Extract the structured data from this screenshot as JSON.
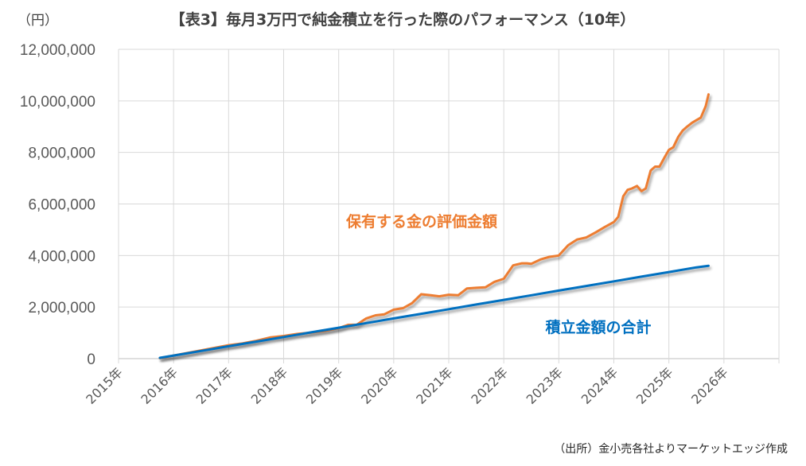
{
  "chart_data": {
    "type": "line",
    "title": "【表3】毎月3万円で純金積立を行った際のパフォーマンス（10年）",
    "ylabel": "（円）",
    "source": "（出所）金小売各社よりマーケットエッジ作成",
    "ylim": [
      0,
      12000000
    ],
    "yticks": [
      0,
      2000000,
      4000000,
      6000000,
      8000000,
      10000000,
      12000000
    ],
    "ytick_labels": [
      "0",
      "2,000,000",
      "4,000,000",
      "6,000,000",
      "8,000,000",
      "10,000,000",
      "12,000,000"
    ],
    "xlim": [
      2015,
      2027
    ],
    "xticks": [
      2015,
      2016,
      2017,
      2018,
      2019,
      2020,
      2021,
      2022,
      2023,
      2024,
      2025,
      2026,
      2027
    ],
    "xtick_labels": [
      "2015年",
      "2016年",
      "2017年",
      "2018年",
      "2019年",
      "2020年",
      "2021年",
      "2022年",
      "2023年",
      "2024年",
      "2025年",
      "2026年",
      ""
    ],
    "grid": true,
    "series": [
      {
        "name": "保有する金の評価金額",
        "color": "#ED7D31",
        "x": [
          2015.75,
          2016.0,
          2016.25,
          2016.5,
          2016.75,
          2017.0,
          2017.25,
          2017.5,
          2017.75,
          2018.0,
          2018.25,
          2018.5,
          2018.75,
          2019.0,
          2019.17,
          2019.33,
          2019.5,
          2019.67,
          2019.83,
          2020.0,
          2020.17,
          2020.33,
          2020.5,
          2020.67,
          2020.83,
          2021.0,
          2021.17,
          2021.33,
          2021.5,
          2021.67,
          2021.83,
          2022.0,
          2022.17,
          2022.33,
          2022.42,
          2022.5,
          2022.58,
          2022.67,
          2022.83,
          2023.0,
          2023.17,
          2023.33,
          2023.5,
          2023.67,
          2023.83,
          2024.0,
          2024.08,
          2024.17,
          2024.25,
          2024.33,
          2024.42,
          2024.5,
          2024.58,
          2024.67,
          2024.75,
          2024.83,
          2024.92,
          2025.0,
          2025.08,
          2025.17,
          2025.25,
          2025.33,
          2025.42,
          2025.5,
          2025.58,
          2025.67,
          2025.72
        ],
        "values": [
          20000,
          120000,
          220000,
          320000,
          420000,
          520000,
          590000,
          690000,
          820000,
          880000,
          960000,
          1010000,
          1080000,
          1180000,
          1310000,
          1320000,
          1560000,
          1680000,
          1720000,
          1900000,
          1960000,
          2150000,
          2500000,
          2460000,
          2420000,
          2480000,
          2460000,
          2720000,
          2750000,
          2770000,
          2980000,
          3100000,
          3620000,
          3700000,
          3700000,
          3680000,
          3760000,
          3850000,
          3950000,
          4000000,
          4400000,
          4620000,
          4700000,
          4900000,
          5100000,
          5300000,
          5500000,
          6300000,
          6550000,
          6600000,
          6700000,
          6500000,
          6600000,
          7300000,
          7450000,
          7450000,
          7800000,
          8100000,
          8200000,
          8600000,
          8850000,
          9000000,
          9150000,
          9250000,
          9350000,
          9800000,
          10250000
        ],
        "label": "保有する金の評価金額"
      },
      {
        "name": "積立金額の合計",
        "color": "#0070C0",
        "x": [
          2015.75,
          2016.0,
          2016.5,
          2017.0,
          2017.5,
          2018.0,
          2018.5,
          2019.0,
          2019.5,
          2020.0,
          2020.5,
          2021.0,
          2021.5,
          2022.0,
          2022.5,
          2023.0,
          2023.5,
          2024.0,
          2024.5,
          2025.0,
          2025.5,
          2025.72
        ],
        "values": [
          30000,
          120000,
          300000,
          480000,
          660000,
          840000,
          1020000,
          1200000,
          1380000,
          1560000,
          1740000,
          1920000,
          2100000,
          2280000,
          2460000,
          2640000,
          2820000,
          3000000,
          3180000,
          3360000,
          3540000,
          3600000
        ],
        "label": "積立金額の合計"
      }
    ]
  }
}
